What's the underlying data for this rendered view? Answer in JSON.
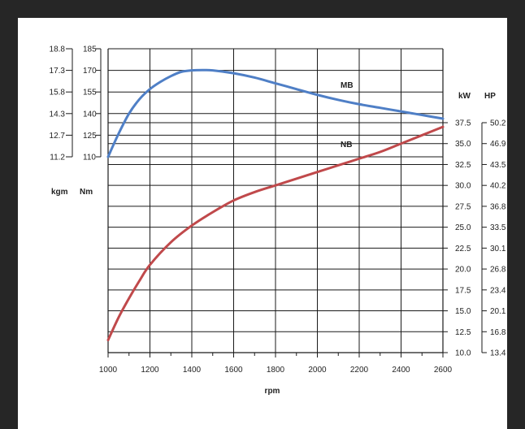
{
  "chart_data": {
    "type": "line",
    "xlabel": "rpm",
    "x_ticks": [
      1000,
      1200,
      1400,
      1600,
      1800,
      2000,
      2200,
      2400,
      2600
    ],
    "xlim": [
      1000,
      2600
    ],
    "torque_axis": {
      "unit_kgm": "kgm",
      "unit_nm": "Nm",
      "nm_ticks": [
        185,
        170,
        155,
        140,
        125,
        110
      ],
      "kgm_ticks": [
        "18.8",
        "17.3",
        "15.8",
        "14.3",
        "12.7",
        "11.2"
      ],
      "ylim_nm": [
        110,
        185
      ]
    },
    "power_axis": {
      "unit_kw": "kW",
      "unit_hp": "HP",
      "kw_ticks": [
        "37.5",
        "35.0",
        "32.5",
        "30.0",
        "27.5",
        "25.0",
        "22.5",
        "20.0",
        "17.5",
        "15.0",
        "12.5",
        "10.0"
      ],
      "hp_ticks": [
        "50.2",
        "46.9",
        "43.5",
        "40.2",
        "36.8",
        "33.5",
        "30.1",
        "26.8",
        "23.4",
        "20.1",
        "16.8",
        "13.4"
      ],
      "ylim_kw": [
        10.0,
        37.5
      ]
    },
    "series": [
      {
        "name": "MB",
        "color": "#4f7fc6",
        "axis": "torque_nm",
        "x": [
          1000,
          1050,
          1100,
          1150,
          1200,
          1250,
          1300,
          1350,
          1400,
          1450,
          1500,
          1600,
          1700,
          1800,
          1900,
          2000,
          2100,
          2200,
          2300,
          2400,
          2500,
          2600
        ],
        "y": [
          110,
          126,
          140,
          150,
          157,
          162,
          166,
          169,
          170,
          170.2,
          170,
          168,
          165,
          161,
          157,
          153,
          149.5,
          146.5,
          144,
          141.5,
          139,
          136.5
        ]
      },
      {
        "name": "NB",
        "color": "#c0494b",
        "axis": "power_kw",
        "x": [
          1000,
          1050,
          1100,
          1150,
          1200,
          1300,
          1400,
          1500,
          1600,
          1700,
          1800,
          1900,
          2000,
          2100,
          2200,
          2300,
          2400,
          2500,
          2600
        ],
        "y": [
          11.5,
          14.2,
          16.5,
          18.6,
          20.5,
          23.2,
          25.2,
          26.8,
          28.2,
          29.2,
          30.0,
          30.8,
          31.6,
          32.4,
          33.2,
          34.0,
          35.0,
          36.0,
          37.0
        ]
      }
    ]
  }
}
